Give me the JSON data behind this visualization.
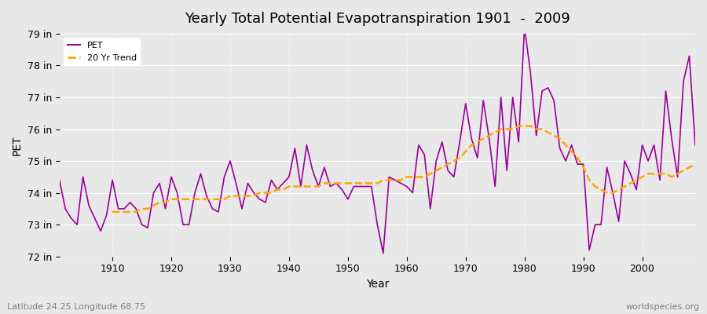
{
  "title": "Yearly Total Potential Evapotranspiration 1901  -  2009",
  "xlabel": "Year",
  "ylabel": "PET",
  "subtitle_left": "Latitude 24.25 Longitude 68.75",
  "subtitle_right": "worldspecies.org",
  "ylim": [
    72,
    79
  ],
  "yticks": [
    72,
    73,
    74,
    75,
    76,
    77,
    78,
    79
  ],
  "ytick_labels": [
    "72 in",
    "73 in",
    "74 in",
    "75 in",
    "76 in",
    "77 in",
    "78 in",
    "79 in"
  ],
  "xlim": [
    1901,
    2009
  ],
  "pet_color": "#990099",
  "trend_color": "#FFA500",
  "background_color": "#E8E8E8",
  "plot_bg_color": "#E8E8E8",
  "years": [
    1901,
    1902,
    1903,
    1904,
    1905,
    1906,
    1907,
    1908,
    1909,
    1910,
    1911,
    1912,
    1913,
    1914,
    1915,
    1916,
    1917,
    1918,
    1919,
    1920,
    1921,
    1922,
    1923,
    1924,
    1925,
    1926,
    1927,
    1928,
    1929,
    1930,
    1931,
    1932,
    1933,
    1934,
    1935,
    1936,
    1937,
    1938,
    1939,
    1940,
    1941,
    1942,
    1943,
    1944,
    1945,
    1946,
    1947,
    1948,
    1949,
    1950,
    1951,
    1952,
    1953,
    1954,
    1955,
    1956,
    1957,
    1958,
    1959,
    1960,
    1961,
    1962,
    1963,
    1964,
    1965,
    1966,
    1967,
    1968,
    1969,
    1970,
    1971,
    1972,
    1973,
    1974,
    1975,
    1976,
    1977,
    1978,
    1979,
    1980,
    1981,
    1982,
    1983,
    1984,
    1985,
    1986,
    1987,
    1988,
    1989,
    1990,
    1991,
    1992,
    1993,
    1994,
    1995,
    1996,
    1997,
    1998,
    1999,
    2000,
    2001,
    2002,
    2003,
    2004,
    2005,
    2006,
    2007,
    2008,
    2009
  ],
  "pet": [
    74.4,
    73.5,
    73.2,
    73.0,
    74.5,
    73.6,
    73.2,
    72.8,
    73.3,
    74.4,
    73.5,
    73.5,
    73.7,
    73.5,
    73.0,
    72.9,
    74.0,
    74.3,
    73.5,
    74.5,
    74.0,
    73.0,
    73.0,
    74.0,
    74.6,
    73.9,
    73.5,
    73.4,
    74.5,
    75.0,
    74.3,
    73.5,
    74.3,
    74.0,
    73.8,
    73.7,
    74.4,
    74.1,
    74.3,
    74.5,
    75.4,
    74.2,
    75.5,
    74.7,
    74.2,
    74.8,
    74.2,
    74.3,
    74.1,
    73.8,
    74.2,
    74.2,
    74.2,
    74.2,
    73.0,
    72.1,
    74.5,
    74.4,
    74.3,
    74.2,
    74.0,
    75.5,
    75.2,
    73.5,
    75.0,
    75.6,
    74.7,
    74.5,
    75.6,
    76.8,
    75.7,
    75.1,
    76.9,
    75.7,
    74.2,
    77.0,
    74.7,
    77.0,
    75.6,
    79.2,
    77.8,
    75.8,
    77.2,
    77.3,
    76.9,
    75.4,
    75.0,
    75.5,
    74.9,
    74.9,
    72.2,
    73.0,
    73.0,
    74.8,
    74.0,
    73.1,
    75.0,
    74.6,
    74.1,
    75.5,
    75.0,
    75.5,
    74.4,
    77.2,
    75.7,
    74.5,
    77.5,
    78.3,
    75.5
  ],
  "trend_years": [
    1910,
    1911,
    1912,
    1913,
    1914,
    1915,
    1916,
    1917,
    1918,
    1919,
    1920,
    1921,
    1922,
    1923,
    1924,
    1925,
    1926,
    1927,
    1928,
    1929,
    1930,
    1931,
    1932,
    1933,
    1934,
    1935,
    1936,
    1937,
    1938,
    1939,
    1940,
    1941,
    1942,
    1943,
    1944,
    1945,
    1946,
    1947,
    1948,
    1949,
    1950,
    1951,
    1952,
    1953,
    1954,
    1955,
    1956,
    1957,
    1958,
    1959,
    1960,
    1961,
    1962,
    1963,
    1964,
    1965,
    1966,
    1967,
    1968,
    1969,
    1970,
    1971,
    1972,
    1973,
    1974,
    1975,
    1976,
    1977,
    1978,
    1979,
    1980,
    1981,
    1982,
    1983,
    1984,
    1985,
    1986,
    1987,
    1988,
    1989,
    1990,
    1991,
    1992,
    1993,
    1994,
    1995,
    1996,
    1997,
    1998,
    1999,
    2000,
    2001,
    2002,
    2003,
    2004,
    2005,
    2006,
    2007,
    2008,
    2009
  ],
  "trend": [
    73.4,
    73.4,
    73.4,
    73.4,
    73.4,
    73.5,
    73.5,
    73.6,
    73.7,
    73.7,
    73.8,
    73.8,
    73.8,
    73.8,
    73.8,
    73.8,
    73.8,
    73.8,
    73.8,
    73.8,
    73.9,
    73.9,
    73.9,
    73.9,
    73.9,
    74.0,
    74.0,
    74.0,
    74.1,
    74.1,
    74.2,
    74.2,
    74.2,
    74.2,
    74.2,
    74.2,
    74.3,
    74.3,
    74.3,
    74.3,
    74.3,
    74.3,
    74.3,
    74.3,
    74.3,
    74.3,
    74.4,
    74.4,
    74.4,
    74.4,
    74.5,
    74.5,
    74.5,
    74.5,
    74.6,
    74.7,
    74.8,
    74.9,
    75.0,
    75.1,
    75.3,
    75.5,
    75.6,
    75.7,
    75.8,
    75.9,
    76.0,
    76.0,
    76.0,
    76.1,
    76.1,
    76.1,
    76.0,
    76.0,
    75.9,
    75.8,
    75.7,
    75.5,
    75.3,
    75.1,
    74.8,
    74.4,
    74.2,
    74.1,
    74.0,
    74.0,
    74.1,
    74.2,
    74.3,
    74.4,
    74.5,
    74.6,
    74.6,
    74.6,
    74.6,
    74.5,
    74.6,
    74.7,
    74.8,
    74.9
  ]
}
